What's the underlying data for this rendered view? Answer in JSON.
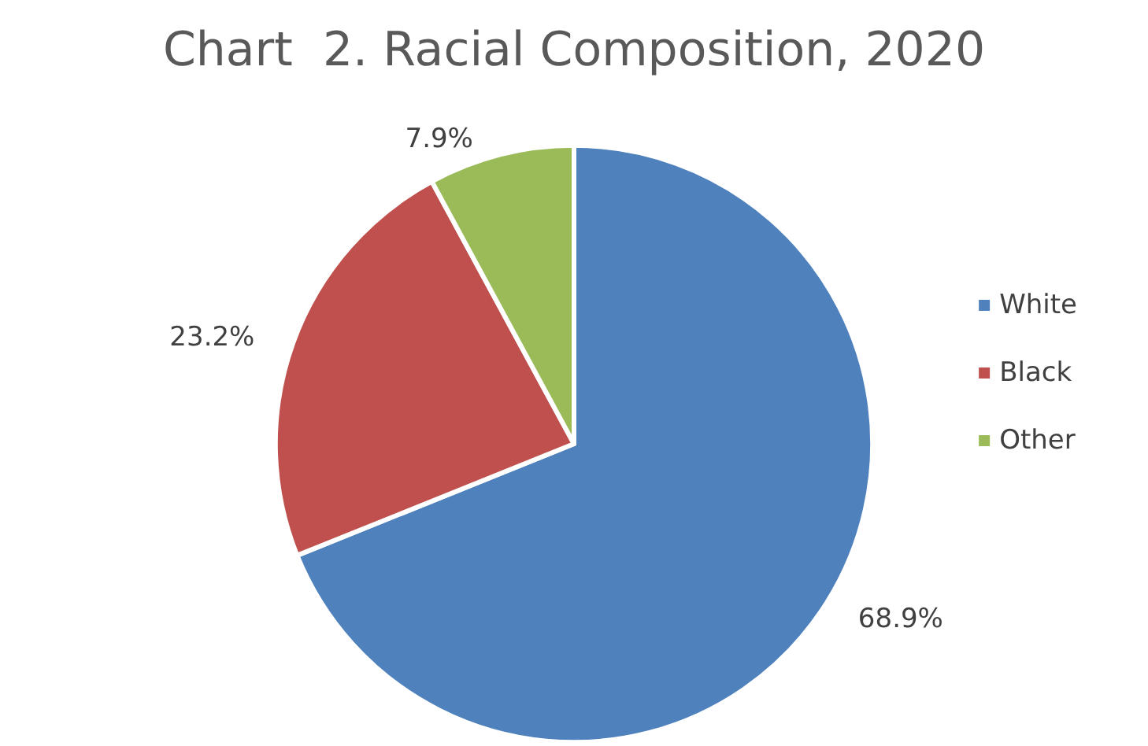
{
  "chart_data": {
    "type": "pie",
    "title": "Chart  2. Racial Composition, 2020",
    "categories": [
      "White",
      "Black",
      "Other"
    ],
    "values": [
      68.9,
      23.2,
      7.9
    ],
    "colors": [
      "#4f81bd",
      "#c0504d",
      "#9bbb59"
    ],
    "value_labels": [
      "68.9%",
      "23.2%",
      "7.9%"
    ],
    "legend": "right"
  }
}
